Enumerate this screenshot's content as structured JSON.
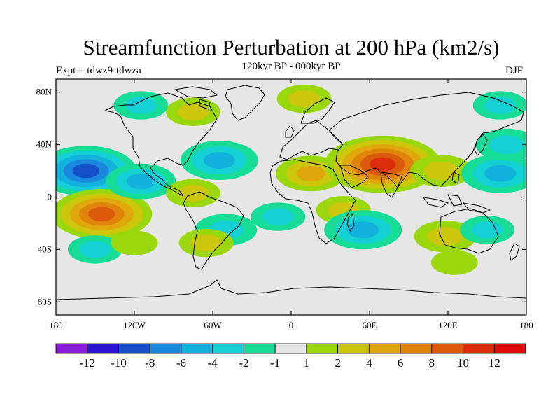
{
  "figure": {
    "title": "Streamfunction Perturbation at 200 hPa (km2/s)",
    "subtitle": "120kyr BP - 000kyr BP",
    "experiment": "Expt = tdwz9-tdwza",
    "season": "DJF"
  },
  "axes": {
    "lat_ticks": [
      "80N",
      "40N",
      "0",
      "40S",
      "80S"
    ],
    "lat_values": [
      80,
      40,
      0,
      -40,
      -80
    ],
    "lon_ticks": [
      "180",
      "120W",
      "60W",
      "0",
      "60E",
      "120E",
      "180"
    ],
    "lon_values": [
      -180,
      -120,
      -60,
      0,
      60,
      120,
      180
    ],
    "lon_range": [
      -180,
      180
    ],
    "lat_range": [
      -90,
      90
    ]
  },
  "colorbar": {
    "labels": [
      "-12",
      "-10",
      "-8",
      "-6",
      "-4",
      "-2",
      "-1",
      "1",
      "2",
      "4",
      "6",
      "8",
      "10",
      "12"
    ],
    "colors": [
      "#8a1bd8",
      "#2f14d6",
      "#1450c8",
      "#1a88dc",
      "#12b2dc",
      "#14cfd3",
      "#16dc98",
      "#e6e6e6",
      "#9ad70c",
      "#ccc60c",
      "#e0a80c",
      "#e0840c",
      "#dc5a0c",
      "#dc2e0c",
      "#de0a0a"
    ]
  },
  "chart_data": {
    "type": "heatmap",
    "variable": "Streamfunction Perturbation at 200 hPa (km2/s)",
    "units": "km2/s",
    "contour_levels": [
      -12,
      -10,
      -8,
      -6,
      -4,
      -2,
      -1,
      1,
      2,
      4,
      6,
      8,
      10,
      12
    ],
    "features": [
      {
        "lon": -157,
        "lat": 20,
        "value": -8
      },
      {
        "lon": -145,
        "lat": -13,
        "value": 8
      },
      {
        "lon": -115,
        "lat": 12,
        "value": -4
      },
      {
        "lon": -150,
        "lat": -40,
        "value": -2
      },
      {
        "lon": -120,
        "lat": -35,
        "value": 1
      },
      {
        "lon": -75,
        "lat": 65,
        "value": 2
      },
      {
        "lon": -55,
        "lat": 28,
        "value": -5
      },
      {
        "lon": -75,
        "lat": 3,
        "value": 2
      },
      {
        "lon": -115,
        "lat": 70,
        "value": -2
      },
      {
        "lon": -50,
        "lat": -25,
        "value": -3
      },
      {
        "lon": -65,
        "lat": -35,
        "value": 2
      },
      {
        "lon": -10,
        "lat": -15,
        "value": -2
      },
      {
        "lon": 10,
        "lat": 75,
        "value": 2
      },
      {
        "lon": 15,
        "lat": 18,
        "value": 4
      },
      {
        "lon": 70,
        "lat": 25,
        "value": 10
      },
      {
        "lon": 40,
        "lat": -10,
        "value": 2
      },
      {
        "lon": 55,
        "lat": -25,
        "value": -5
      },
      {
        "lon": 115,
        "lat": 20,
        "value": 3
      },
      {
        "lon": 118,
        "lat": -30,
        "value": 3
      },
      {
        "lon": 160,
        "lat": 18,
        "value": -5
      },
      {
        "lon": 165,
        "lat": 40,
        "value": -3
      },
      {
        "lon": 160,
        "lat": 70,
        "value": -2
      },
      {
        "lon": 150,
        "lat": -25,
        "value": -2
      },
      {
        "lon": 125,
        "lat": -50,
        "value": 1
      }
    ]
  }
}
